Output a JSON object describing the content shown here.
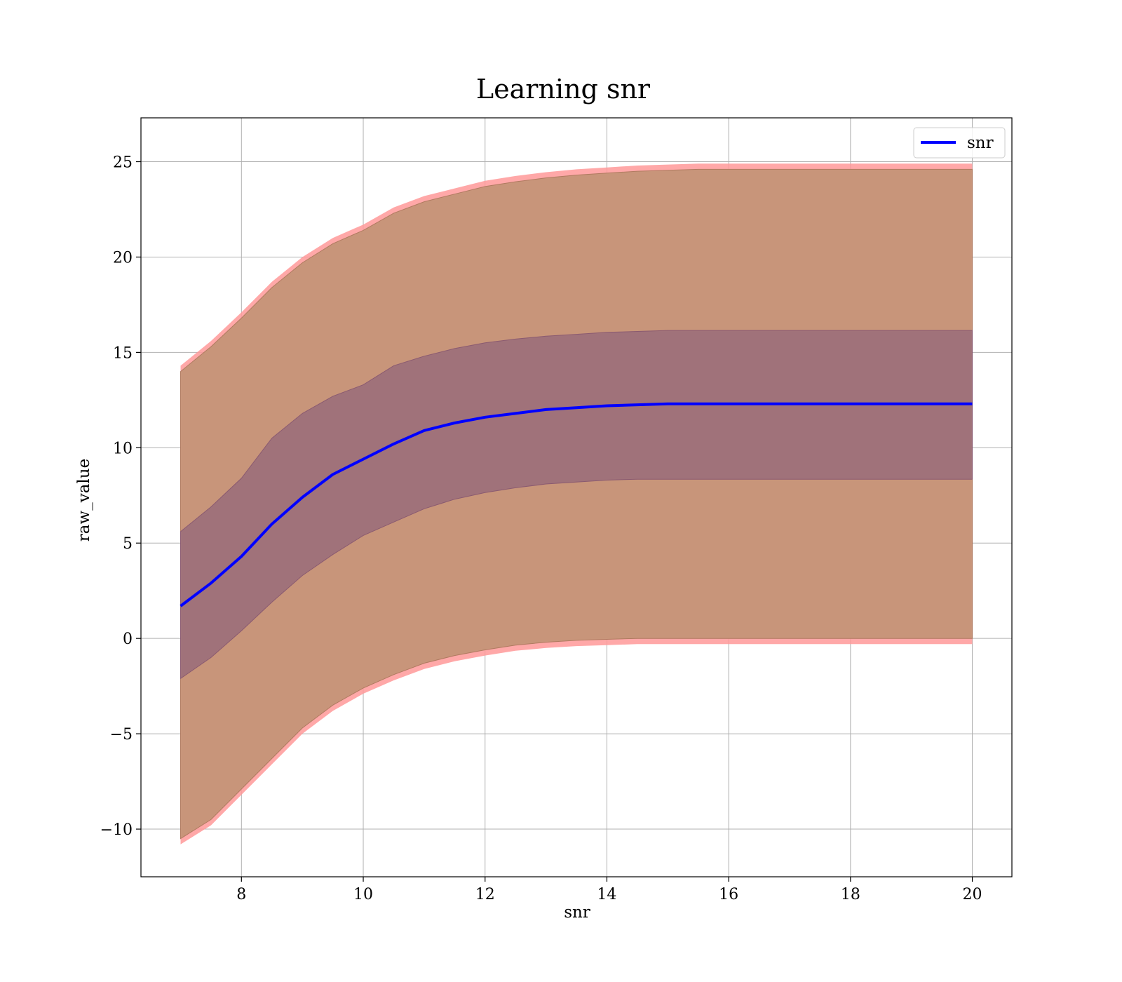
{
  "chart_data": {
    "type": "line",
    "title": "Learning snr",
    "xlabel": "snr",
    "ylabel": "raw_value",
    "xlim": [
      6.35,
      20.65
    ],
    "ylim": [
      -12.5,
      27.3
    ],
    "x_ticks": [
      8,
      10,
      12,
      14,
      16,
      18,
      20
    ],
    "x_tick_labels": [
      "8",
      "10",
      "12",
      "14",
      "16",
      "18",
      "20"
    ],
    "y_ticks": [
      -10,
      -5,
      0,
      5,
      10,
      15,
      20,
      25
    ],
    "y_tick_labels": [
      "−10",
      "−5",
      "0",
      "5",
      "10",
      "15",
      "20",
      "25"
    ],
    "grid": true,
    "legend": {
      "position": "top-right",
      "entries": [
        "snr"
      ]
    },
    "colors": {
      "line": "#0000ff",
      "outer_band": "#c8957a",
      "outer_band_edge": "#ff9999",
      "inner_band": "#a0727a"
    },
    "x": [
      7.0,
      7.5,
      8.0,
      8.5,
      9.0,
      9.5,
      10.0,
      10.5,
      11.0,
      11.5,
      12.0,
      12.5,
      13.0,
      13.5,
      14.0,
      14.5,
      15.0,
      15.5,
      16.0,
      16.5,
      17.0,
      17.5,
      18.0,
      18.5,
      19.0,
      19.5,
      20.0
    ],
    "series": [
      {
        "name": "snr",
        "role": "mean",
        "values": [
          1.7,
          2.9,
          4.3,
          6.0,
          7.4,
          8.6,
          9.4,
          10.2,
          10.9,
          11.3,
          11.6,
          11.8,
          12.0,
          12.1,
          12.2,
          12.25,
          12.3,
          12.3,
          12.3,
          12.3,
          12.3,
          12.3,
          12.3,
          12.3,
          12.3,
          12.3,
          12.3
        ]
      },
      {
        "role": "outer_upper",
        "values": [
          14.0,
          15.3,
          16.8,
          18.4,
          19.7,
          20.7,
          21.4,
          22.3,
          22.9,
          23.3,
          23.7,
          23.95,
          24.15,
          24.3,
          24.4,
          24.5,
          24.55,
          24.6,
          24.6,
          24.6,
          24.6,
          24.6,
          24.6,
          24.6,
          24.6,
          24.6,
          24.6
        ]
      },
      {
        "role": "outer_lower",
        "values": [
          -10.5,
          -9.5,
          -7.9,
          -6.3,
          -4.7,
          -3.5,
          -2.6,
          -1.9,
          -1.3,
          -0.9,
          -0.6,
          -0.35,
          -0.2,
          -0.1,
          -0.05,
          0.0,
          0.0,
          0.0,
          0.0,
          0.0,
          0.0,
          0.0,
          0.0,
          0.0,
          0.0,
          0.0,
          0.0
        ]
      },
      {
        "role": "inner_upper",
        "values": [
          5.6,
          6.9,
          8.4,
          10.5,
          11.8,
          12.7,
          13.3,
          14.3,
          14.8,
          15.2,
          15.5,
          15.7,
          15.85,
          15.95,
          16.05,
          16.1,
          16.15,
          16.15,
          16.15,
          16.15,
          16.15,
          16.15,
          16.15,
          16.15,
          16.15,
          16.15,
          16.15
        ]
      },
      {
        "role": "inner_lower",
        "values": [
          -2.1,
          -1.0,
          0.4,
          1.9,
          3.3,
          4.4,
          5.4,
          6.1,
          6.8,
          7.3,
          7.65,
          7.9,
          8.1,
          8.2,
          8.3,
          8.35,
          8.35,
          8.35,
          8.35,
          8.35,
          8.35,
          8.35,
          8.35,
          8.35,
          8.35,
          8.35,
          8.35
        ]
      }
    ]
  }
}
